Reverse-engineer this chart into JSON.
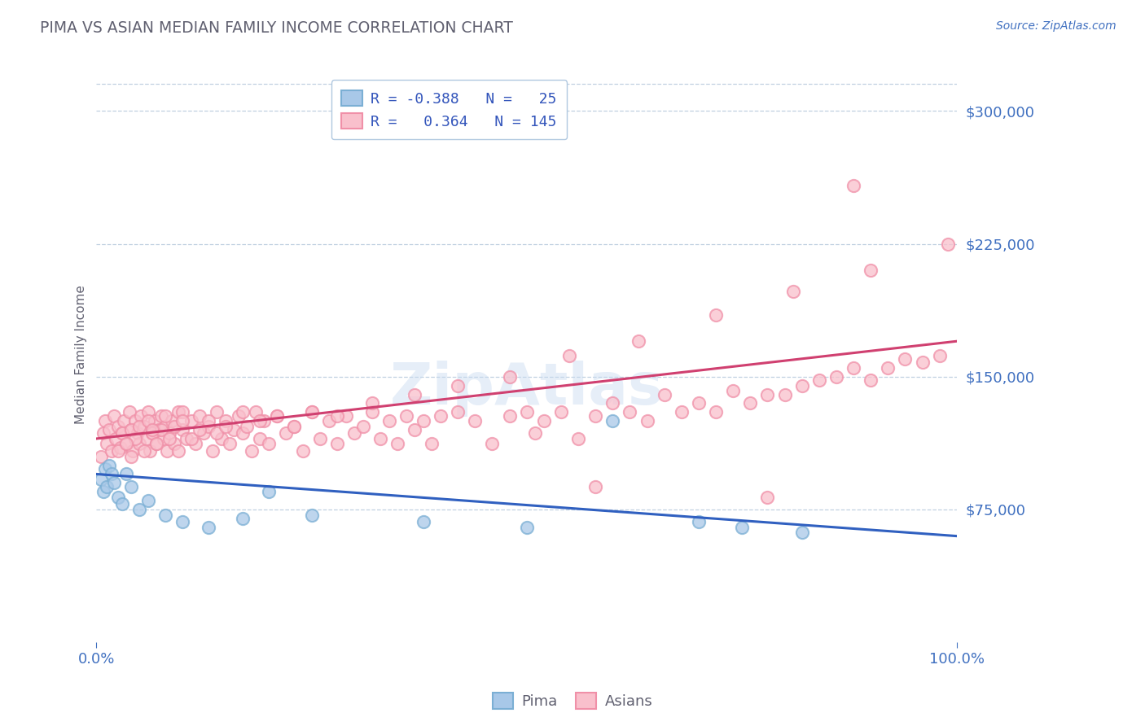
{
  "title": "PIMA VS ASIAN MEDIAN FAMILY INCOME CORRELATION CHART",
  "source_text": "Source: ZipAtlas.com",
  "ylabel": "Median Family Income",
  "watermark": "ZipAtlas",
  "x_min": 0.0,
  "x_max": 1.0,
  "y_min": 0,
  "y_max": 325000,
  "yticks": [
    75000,
    150000,
    225000,
    300000
  ],
  "ytick_labels": [
    "$75,000",
    "$150,000",
    "$225,000",
    "$300,000"
  ],
  "xticks": [
    0.0,
    1.0
  ],
  "xtick_labels": [
    "0.0%",
    "100.0%"
  ],
  "pima_color_fill": "#a8c8e8",
  "pima_color_edge": "#7bafd4",
  "asian_color_fill": "#f9c0cc",
  "asian_color_edge": "#f090a8",
  "pima_line_color": "#3060c0",
  "asian_line_color": "#d04070",
  "background_color": "#ffffff",
  "grid_color": "#c0d0e0",
  "title_color": "#606070",
  "ylabel_color": "#606070",
  "tick_label_color": "#4070c0",
  "source_color": "#4070c0",
  "legend_text_color": "#3355bb",
  "legend_r_color": "#cc2244",
  "watermark_color": "#c8daf0",
  "pima_intercept": 95000,
  "pima_slope": -35000,
  "asian_intercept": 115000,
  "asian_slope": 55000,
  "pima_x": [
    0.005,
    0.008,
    0.01,
    0.012,
    0.015,
    0.018,
    0.02,
    0.025,
    0.03,
    0.035,
    0.04,
    0.05,
    0.06,
    0.08,
    0.1,
    0.13,
    0.17,
    0.2,
    0.25,
    0.38,
    0.5,
    0.6,
    0.7,
    0.75,
    0.82
  ],
  "pima_y": [
    92000,
    85000,
    98000,
    88000,
    100000,
    95000,
    90000,
    82000,
    78000,
    95000,
    88000,
    75000,
    80000,
    72000,
    68000,
    65000,
    70000,
    85000,
    72000,
    68000,
    65000,
    125000,
    68000,
    65000,
    62000
  ],
  "asian_x": [
    0.005,
    0.008,
    0.01,
    0.012,
    0.015,
    0.018,
    0.02,
    0.022,
    0.025,
    0.028,
    0.03,
    0.032,
    0.035,
    0.038,
    0.04,
    0.042,
    0.045,
    0.048,
    0.05,
    0.052,
    0.055,
    0.058,
    0.06,
    0.062,
    0.065,
    0.068,
    0.07,
    0.072,
    0.075,
    0.078,
    0.08,
    0.082,
    0.085,
    0.088,
    0.09,
    0.095,
    0.1,
    0.105,
    0.11,
    0.115,
    0.12,
    0.125,
    0.13,
    0.135,
    0.14,
    0.145,
    0.15,
    0.155,
    0.16,
    0.165,
    0.17,
    0.175,
    0.18,
    0.185,
    0.19,
    0.195,
    0.2,
    0.21,
    0.22,
    0.23,
    0.24,
    0.25,
    0.26,
    0.27,
    0.28,
    0.29,
    0.3,
    0.31,
    0.32,
    0.33,
    0.34,
    0.35,
    0.36,
    0.37,
    0.38,
    0.39,
    0.4,
    0.42,
    0.44,
    0.46,
    0.48,
    0.5,
    0.51,
    0.52,
    0.54,
    0.56,
    0.58,
    0.6,
    0.62,
    0.64,
    0.66,
    0.68,
    0.7,
    0.72,
    0.74,
    0.76,
    0.78,
    0.8,
    0.82,
    0.84,
    0.86,
    0.88,
    0.9,
    0.92,
    0.94,
    0.96,
    0.98,
    0.025,
    0.03,
    0.04,
    0.045,
    0.05,
    0.055,
    0.06,
    0.065,
    0.07,
    0.075,
    0.08,
    0.085,
    0.09,
    0.095,
    0.1,
    0.11,
    0.12,
    0.13,
    0.14,
    0.15,
    0.17,
    0.19,
    0.21,
    0.23,
    0.25,
    0.28,
    0.32,
    0.37,
    0.42,
    0.48,
    0.55,
    0.63,
    0.72,
    0.81,
    0.9,
    0.99,
    0.035,
    0.065,
    0.1,
    0.58,
    0.88,
    0.78,
    0.04
  ],
  "asian_y": [
    105000,
    118000,
    125000,
    112000,
    120000,
    108000,
    128000,
    115000,
    122000,
    110000,
    118000,
    125000,
    112000,
    130000,
    120000,
    108000,
    125000,
    118000,
    112000,
    128000,
    122000,
    115000,
    130000,
    108000,
    118000,
    125000,
    112000,
    120000,
    128000,
    115000,
    122000,
    108000,
    118000,
    125000,
    112000,
    130000,
    120000,
    115000,
    125000,
    112000,
    128000,
    118000,
    122000,
    108000,
    130000,
    115000,
    125000,
    112000,
    120000,
    128000,
    118000,
    122000,
    108000,
    130000,
    115000,
    125000,
    112000,
    128000,
    118000,
    122000,
    108000,
    130000,
    115000,
    125000,
    112000,
    128000,
    118000,
    122000,
    130000,
    115000,
    125000,
    112000,
    128000,
    120000,
    125000,
    112000,
    128000,
    130000,
    125000,
    112000,
    128000,
    130000,
    118000,
    125000,
    130000,
    115000,
    128000,
    135000,
    130000,
    125000,
    140000,
    130000,
    135000,
    130000,
    142000,
    135000,
    140000,
    140000,
    145000,
    148000,
    150000,
    155000,
    148000,
    155000,
    160000,
    158000,
    162000,
    108000,
    118000,
    120000,
    115000,
    122000,
    108000,
    125000,
    118000,
    112000,
    120000,
    128000,
    115000,
    122000,
    108000,
    130000,
    115000,
    120000,
    125000,
    118000,
    122000,
    130000,
    125000,
    128000,
    122000,
    130000,
    128000,
    135000,
    140000,
    145000,
    150000,
    162000,
    170000,
    185000,
    198000,
    210000,
    225000,
    112000,
    120000,
    125000,
    88000,
    258000,
    82000,
    105000
  ]
}
